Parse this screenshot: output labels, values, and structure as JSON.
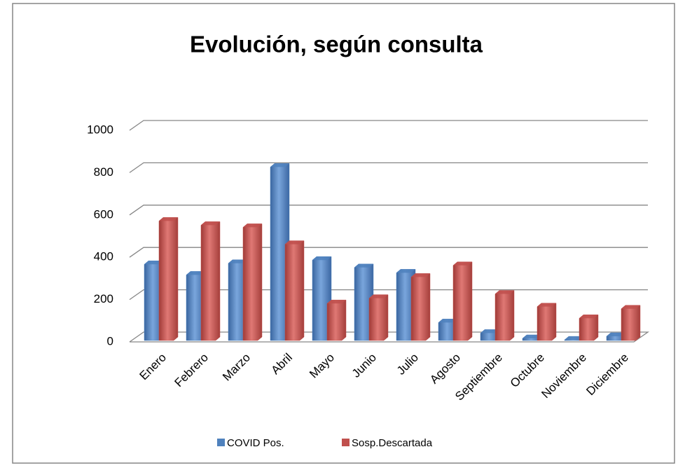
{
  "chart_data": {
    "type": "bar3d",
    "title": "Evolución, según consulta",
    "categories": [
      "Enero",
      "Febrero",
      "Marzo",
      "Abril",
      "Mayo",
      "Junio",
      "Julio",
      "Agosto",
      "Septiembre",
      "Octubre",
      "Noviembre",
      "Diciembre"
    ],
    "series": [
      {
        "name": "COVID Pos.",
        "color": "#4f81bd",
        "values": [
          360,
          310,
          365,
          820,
          380,
          345,
          320,
          85,
          35,
          10,
          3,
          20
        ]
      },
      {
        "name": "Sosp.Descartada",
        "color": "#c0504d",
        "values": [
          565,
          545,
          535,
          455,
          175,
          200,
          300,
          355,
          220,
          160,
          105,
          150
        ]
      }
    ],
    "ylim": [
      0,
      1000
    ],
    "yticks": [
      0,
      200,
      400,
      600,
      800,
      1000
    ],
    "grid": true,
    "legend": "bottom"
  }
}
